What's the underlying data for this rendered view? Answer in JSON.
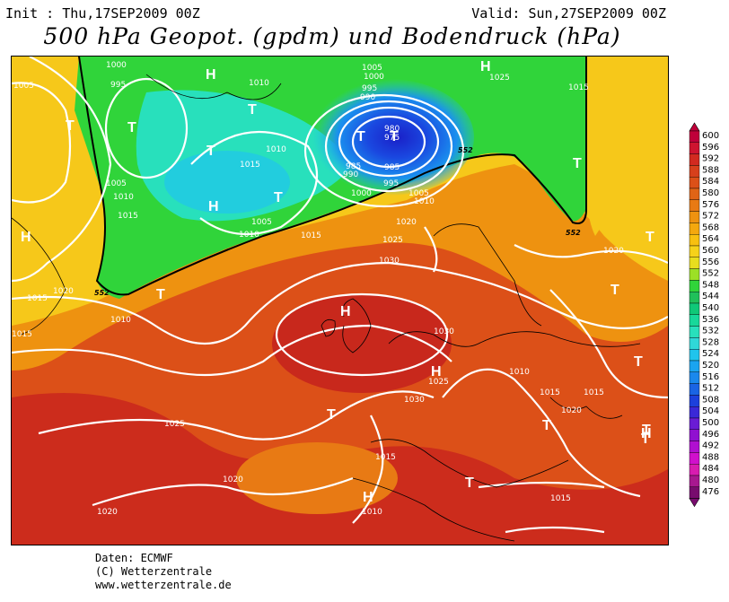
{
  "header": {
    "init": "Init : Thu,17SEP2009 00Z",
    "valid": "Valid: Sun,27SEP2009 00Z",
    "title": "500 hPa Geopot. (gpdm) und Bodendruck (hPa)"
  },
  "footer": {
    "line1": "Daten: ECMWF",
    "line2": "(C) Wetterzentrale",
    "line3": "www.wetterzentrale.de"
  },
  "legend": {
    "levels": [
      "600",
      "596",
      "592",
      "588",
      "584",
      "580",
      "576",
      "572",
      "568",
      "564",
      "560",
      "556",
      "552",
      "548",
      "544",
      "540",
      "536",
      "532",
      "528",
      "524",
      "520",
      "516",
      "512",
      "508",
      "504",
      "500",
      "496",
      "492",
      "488",
      "484",
      "480",
      "476"
    ],
    "colors": [
      "#c0003a",
      "#ce1430",
      "#d22a20",
      "#d7401c",
      "#dc5018",
      "#e06416",
      "#e87a14",
      "#ee9210",
      "#f4a80e",
      "#f8c010",
      "#f6d21a",
      "#e8de1e",
      "#9ce026",
      "#30d43a",
      "#20c05a",
      "#10c878",
      "#18d89a",
      "#28e0bc",
      "#30d8d8",
      "#20c4ec",
      "#1aa4f0",
      "#1a88ec",
      "#1a64e4",
      "#1c40dc",
      "#3a28d8",
      "#6a1cd4",
      "#9010d0",
      "#b010d0",
      "#d010cc",
      "#d81cb0",
      "#a81890",
      "#780c6e"
    ]
  },
  "map": {
    "isobar_labels": [
      "1000",
      "995",
      "1005",
      "1010",
      "1015",
      "1010",
      "1005",
      "1010",
      "1015",
      "1005",
      "1010",
      "1015",
      "1020",
      "1025",
      "1030",
      "1015",
      "1020",
      "1015",
      "1010",
      "1000",
      "1005",
      "995",
      "990",
      "985",
      "980",
      "975",
      "985",
      "990",
      "995",
      "1000",
      "1005",
      "1010",
      "1020",
      "1025",
      "1030",
      "1030",
      "1025",
      "1020",
      "1015",
      "1010",
      "1015",
      "1020",
      "1015",
      "1020",
      "1015",
      "1025",
      "1015",
      "1010"
    ],
    "pressure_symbols": [
      "H",
      "T",
      "T",
      "H",
      "T",
      "H",
      "T",
      "T",
      "T",
      "T",
      "T",
      "H",
      "T",
      "H",
      "H",
      "T",
      "T",
      "T",
      "T",
      "T",
      "H",
      "T",
      "T",
      "H",
      "T"
    ],
    "height_labels": [
      "552",
      "552",
      "552"
    ]
  }
}
